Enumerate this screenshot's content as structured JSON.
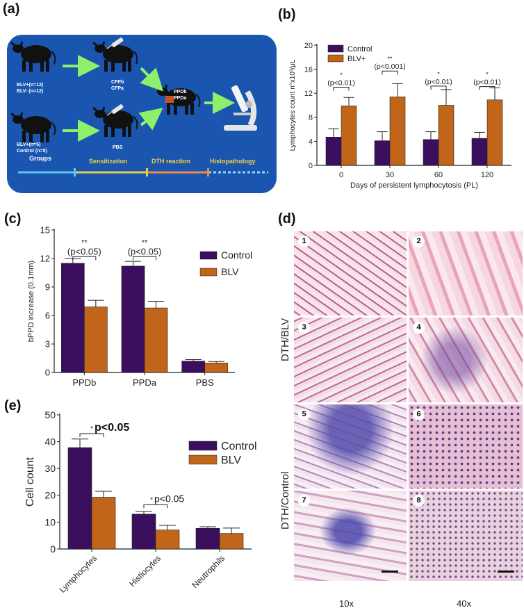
{
  "panel_labels": {
    "a": "(a)",
    "b": "(b)",
    "c": "(c)",
    "d": "(d)",
    "e": "(e)"
  },
  "colors": {
    "control": "#3a0f5e",
    "blv": "#c0651a",
    "scheme_bg": "#1a56b0",
    "arrow": "#8ef06a"
  },
  "scheme": {
    "group1_text": [
      "BLV+(n=12)",
      "BLV- (n=12)"
    ],
    "group2_text": [
      "BLV+(n=5)",
      "Control (n=5)"
    ],
    "groups_label": "Groups",
    "sens1_text": [
      "CFPb",
      "CFPa"
    ],
    "sens2_text": "PBS",
    "dth_text": [
      "PPDb",
      "PPDa"
    ],
    "timeline": [
      "Sensitization",
      "DTH reaction",
      "Histopathology"
    ]
  },
  "chart_data": [
    {
      "id": "b",
      "type": "bar",
      "categories": [
        "0",
        "30",
        "60",
        "120"
      ],
      "series": [
        {
          "name": "Control",
          "values": [
            4.7,
            4.1,
            4.3,
            4.5
          ],
          "errors": [
            1.4,
            1.5,
            1.3,
            1.0
          ]
        },
        {
          "name": "BLV+",
          "values": [
            9.9,
            11.4,
            10.0,
            10.9
          ],
          "errors": [
            1.4,
            2.2,
            2.6,
            2.0
          ]
        }
      ],
      "xlabel": "Days of persistent lymphocytosis (PL)",
      "ylabel": "Lymphocytes count n°x10³/μL",
      "ylim": [
        0,
        20
      ],
      "yticks": [
        "0",
        "4",
        "8",
        "12",
        "16",
        "20"
      ],
      "annotations": [
        {
          "star": "*",
          "text": "(p<0.01)"
        },
        {
          "star": "**",
          "text": "(p<0.001)"
        },
        {
          "star": "*",
          "text": "(p<0.01)"
        },
        {
          "star": "*",
          "text": "(p<0.01)"
        }
      ],
      "legend": "top-left"
    },
    {
      "id": "c",
      "type": "bar",
      "categories": [
        "PPDb",
        "PPDa",
        "PBS"
      ],
      "series": [
        {
          "name": "Control",
          "values": [
            11.5,
            11.2,
            1.2
          ],
          "errors": [
            0.5,
            0.5,
            0.15
          ]
        },
        {
          "name": "BLV",
          "values": [
            6.9,
            6.8,
            1.0
          ],
          "errors": [
            0.7,
            0.7,
            0.15
          ]
        }
      ],
      "ylabel": "bPPD increase (0.1mm)",
      "ylim": [
        0,
        15
      ],
      "yticks": [
        "0",
        "3",
        "6",
        "9",
        "12",
        "15"
      ],
      "annotations": [
        {
          "star": "**",
          "text": "(p<0.05)"
        },
        {
          "star": "**",
          "text": "(p<0.05)"
        }
      ],
      "legend": "right"
    },
    {
      "id": "e",
      "type": "bar",
      "categories": [
        "Lymphocytes",
        "Histiocytes",
        "Neutrophils"
      ],
      "series": [
        {
          "name": "Control",
          "values": [
            37.8,
            13.0,
            7.7
          ],
          "errors": [
            3.2,
            1.0,
            0.6
          ]
        },
        {
          "name": "BLV",
          "values": [
            19.3,
            7.1,
            5.8
          ],
          "errors": [
            2.2,
            1.7,
            2.0
          ]
        }
      ],
      "ylabel": "Cell count",
      "ylim": [
        0,
        50
      ],
      "yticks": [
        "0",
        "10",
        "20",
        "30",
        "40",
        "50"
      ],
      "annotations": [
        {
          "star": "*",
          "text": "p<0.05"
        },
        {
          "star": "*",
          "text": "p<0.05"
        }
      ],
      "legend": "right"
    }
  ],
  "micro": {
    "row_labels": [
      "DTH/BLV",
      "DTH/Control"
    ],
    "numbers": [
      "1",
      "2",
      "3",
      "4",
      "5",
      "6",
      "7",
      "8"
    ],
    "magnifications": [
      "10x",
      "40x"
    ]
  }
}
